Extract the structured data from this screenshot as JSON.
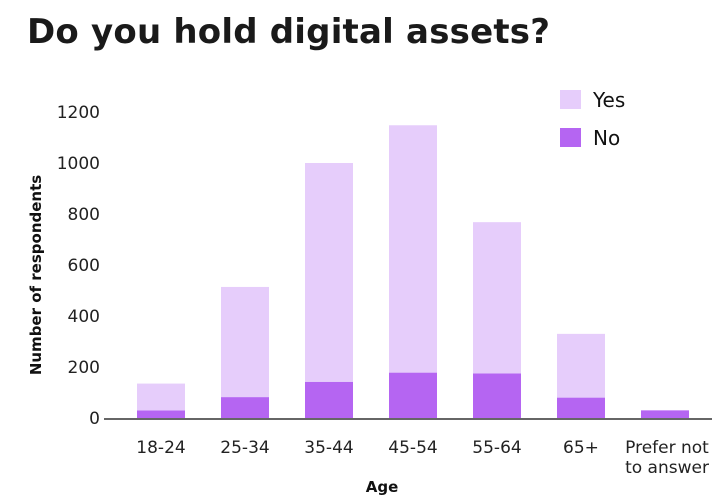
{
  "chart_data": {
    "type": "bar",
    "stacked": true,
    "title": "Do you hold digital assets?",
    "xlabel": "Age",
    "ylabel": "Number of respondents",
    "categories": [
      "18-24",
      "25-34",
      "35-44",
      "45-54",
      "55-64",
      "65+",
      "Prefer not to answer"
    ],
    "category_lines": [
      [
        "18-24"
      ],
      [
        "25-34"
      ],
      [
        "35-44"
      ],
      [
        "45-54"
      ],
      [
        "55-64"
      ],
      [
        "65+"
      ],
      [
        "Prefer not",
        "to answer"
      ]
    ],
    "series": [
      {
        "name": "No",
        "color": "#b565f2",
        "values": [
          30,
          82,
          142,
          178,
          175,
          80,
          30
        ]
      },
      {
        "name": "Yes",
        "color": "#e6cdfb",
        "values": [
          105,
          432,
          858,
          970,
          593,
          250,
          0
        ]
      }
    ],
    "yticks": [
      0,
      200,
      400,
      600,
      800,
      1000,
      1200
    ],
    "ylim": [
      0,
      1200
    ],
    "legend_position": "top-right",
    "grid": false
  }
}
